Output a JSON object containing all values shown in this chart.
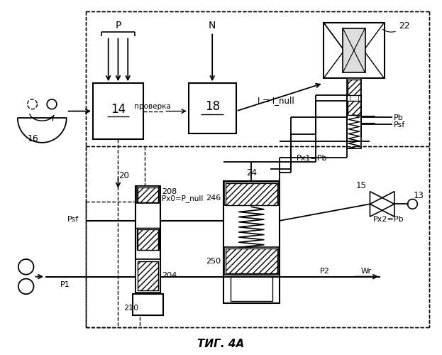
{
  "title": "ΤИГ. 4A",
  "bg_color": "#ffffff",
  "labels": {
    "P": "P",
    "N": "N",
    "block14": "14",
    "block18": "18",
    "proverka": "проверка",
    "I_null": "I = I_null",
    "label16": "16",
    "label20": "20",
    "label22": "22",
    "label24": "24",
    "label15": "15",
    "label13": "13",
    "label208": "208",
    "label204": "204",
    "label210": "210",
    "label246": "246",
    "label250": "250",
    "Px0": "Px0=P_null",
    "Px1": "Px1=Pb",
    "Px2": "Px2=Pb",
    "Pb": "Pb",
    "Psf": "Psf",
    "P1": "P1",
    "P2": "P2",
    "Wr": "Wr"
  }
}
